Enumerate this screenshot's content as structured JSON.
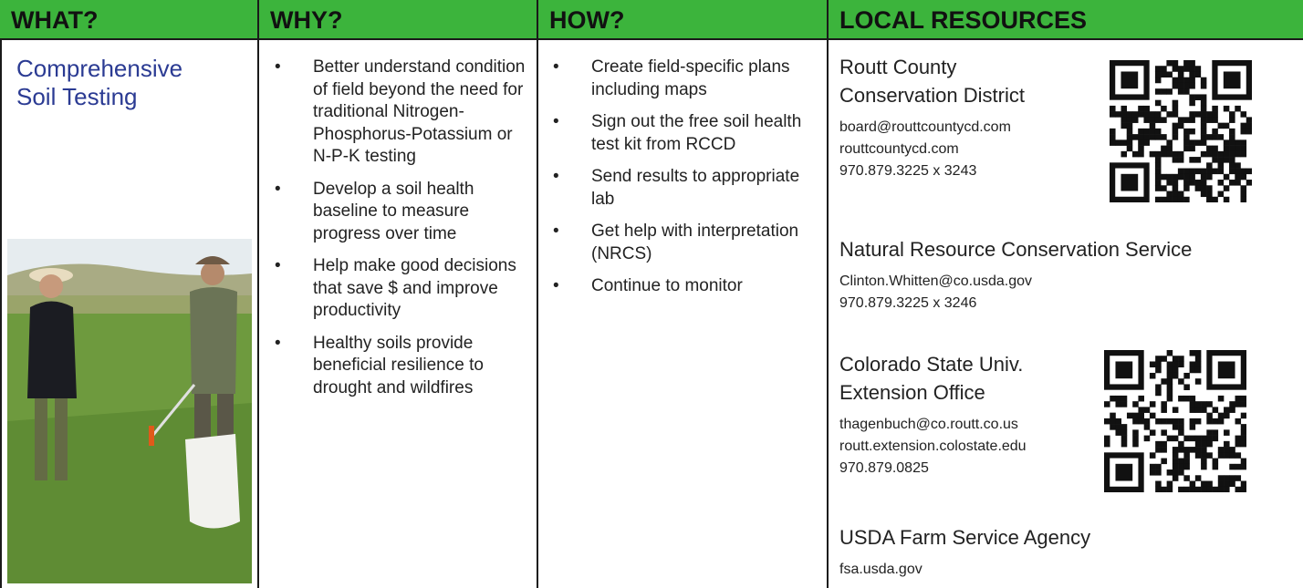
{
  "table": {
    "headers": [
      "WHAT?",
      "WHY?",
      "HOW?",
      "LOCAL RESOURCES"
    ],
    "what": "Comprehensive Soil Testing",
    "why": [
      "Better understand condition of field beyond the need for traditional Nitrogen-Phosphorus-Potassium or N-P-K testing",
      "Develop a soil health baseline to measure progress over time",
      "Help make good decisions that save $ and improve productivity",
      "Healthy soils provide beneficial resilience to drought and wildfires"
    ],
    "how": [
      "Create field-specific plans including maps",
      "Sign out the free soil health test kit from RCCD",
      "Send results to appropriate lab",
      "Get help with interpretation (NRCS)",
      "Continue to monitor"
    ],
    "resources": [
      {
        "name": "Routt County Conservation District",
        "contacts": [
          "board@routtcountycd.com",
          "routtcountycd.com",
          "970.879.3225 x 3243"
        ]
      },
      {
        "name": "Natural Resource Conservation Service",
        "contacts": [
          "Clinton.Whitten@co.usda.gov",
          "970.879.3225 x 3246"
        ]
      },
      {
        "name": "Colorado State Univ. Extension Office",
        "contacts": [
          "thagenbuch@co.routt.co.us",
          "routt.extension.colostate.edu",
          "970.879.0825"
        ]
      },
      {
        "name": "USDA Farm Service Agency",
        "contacts": [
          "fsa.usda.gov"
        ]
      }
    ]
  }
}
